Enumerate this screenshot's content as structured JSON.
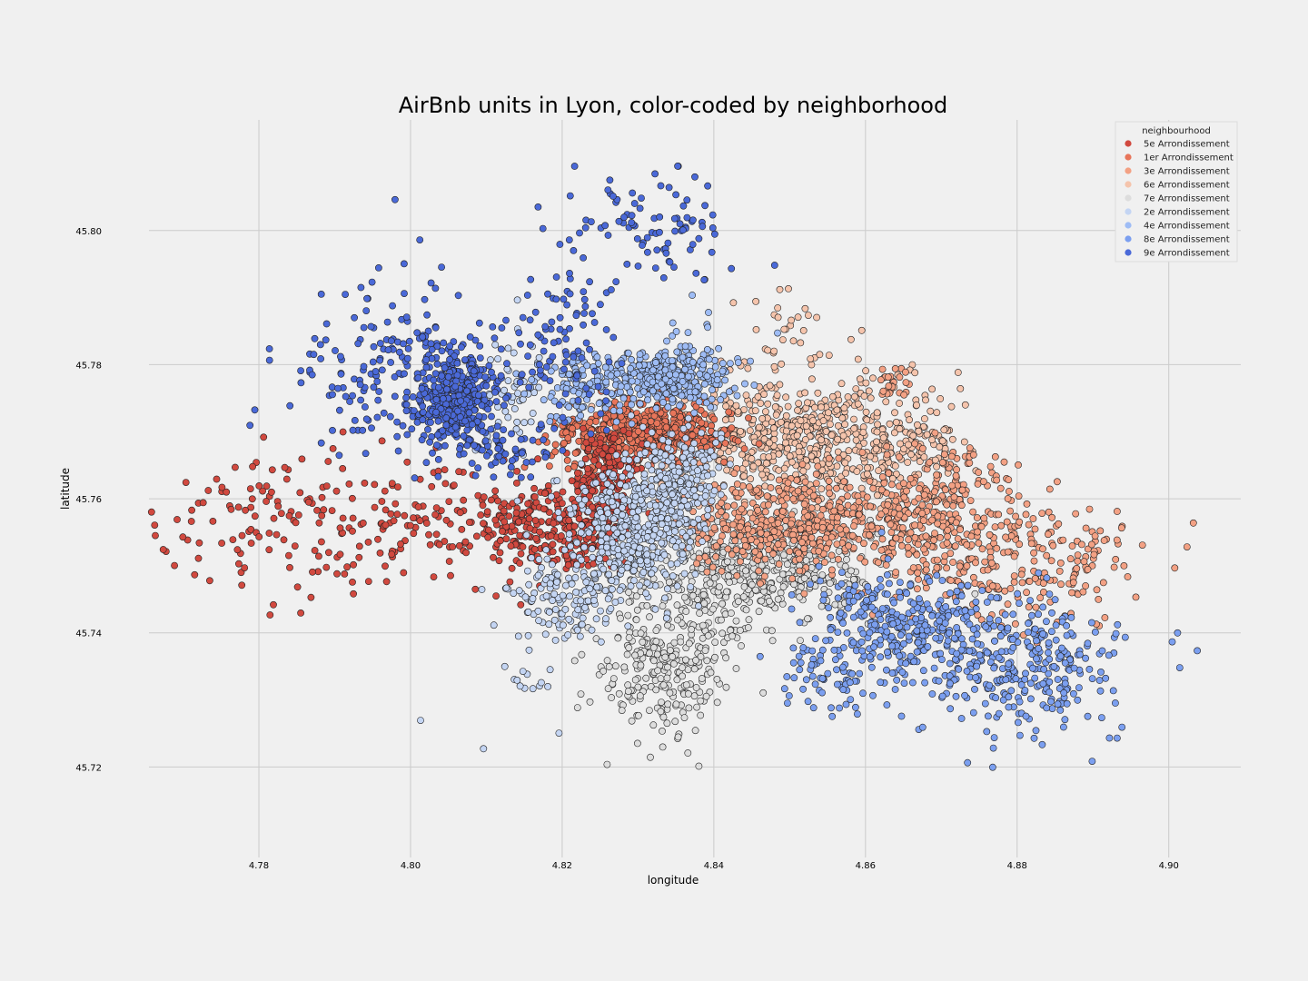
{
  "chart_data": {
    "type": "scatter",
    "title": "AirBnb units in Lyon, color-coded by neighborhood",
    "xlabel": "longitude",
    "ylabel": "latitude",
    "xlim": [
      4.7655,
      4.9095
    ],
    "ylim": [
      45.7065,
      45.8165
    ],
    "xticks": [
      "4.78",
      "4.80",
      "4.82",
      "4.84",
      "4.86",
      "4.88",
      "4.90"
    ],
    "yticks": [
      "45.72",
      "45.74",
      "45.76",
      "45.78",
      "45.80"
    ],
    "grid": true,
    "legend": {
      "title": "neighbourhood",
      "placement": "top-right",
      "entries": [
        "5e Arrondissement",
        "1er Arrondissement",
        "3e Arrondissement",
        "6e Arrondissement",
        "7e Arrondissement",
        "2e Arrondissement",
        "4e Arrondissement",
        "8e Arrondissement",
        "9e Arrondissement"
      ]
    },
    "series": [
      {
        "name": "5e Arrondissement",
        "color": "#d1493f",
        "clusters": [
          {
            "center": [
              4.785,
              45.756
            ],
            "spread": [
              0.011,
              0.006
            ],
            "count": 160
          },
          {
            "center": [
              4.806,
              45.756
            ],
            "spread": [
              0.008,
              0.004
            ],
            "count": 110
          },
          {
            "center": [
              4.8155,
              45.756
            ],
            "spread": [
              0.0035,
              0.0028
            ],
            "count": 120
          },
          {
            "center": [
              4.8255,
              45.761
            ],
            "spread": [
              0.0022,
              0.0045
            ],
            "count": 260
          },
          {
            "center": [
              4.8215,
              45.754
            ],
            "spread": [
              0.0022,
              0.0025
            ],
            "count": 70
          }
        ]
      },
      {
        "name": "1er Arrondissement",
        "color": "#e8755a",
        "clusters": [
          {
            "center": [
              4.832,
              45.77
            ],
            "spread": [
              0.0045,
              0.0022
            ],
            "count": 480
          },
          {
            "center": [
              4.8225,
              45.768
            ],
            "spread": [
              0.0022,
              0.0025
            ],
            "count": 60
          }
        ]
      },
      {
        "name": "3e Arrondissement",
        "color": "#f3a184",
        "clusters": [
          {
            "center": [
              4.85,
              45.756
            ],
            "spread": [
              0.0065,
              0.0035
            ],
            "count": 420
          },
          {
            "center": [
              4.868,
              45.757
            ],
            "spread": [
              0.0055,
              0.0055
            ],
            "count": 330
          },
          {
            "center": [
              4.882,
              45.751
            ],
            "spread": [
              0.0075,
              0.0045
            ],
            "count": 210
          },
          {
            "center": [
              4.8635,
              45.777
            ],
            "spread": [
              0.001,
              0.0012
            ],
            "count": 25
          }
        ]
      },
      {
        "name": "6e Arrondissement",
        "color": "#f5c4ac",
        "clusters": [
          {
            "center": [
              4.851,
              45.769
            ],
            "spread": [
              0.0075,
              0.0048
            ],
            "count": 520
          },
          {
            "center": [
              4.865,
              45.768
            ],
            "spread": [
              0.0045,
              0.0038
            ],
            "count": 120
          },
          {
            "center": [
              4.85,
              45.786
            ],
            "spread": [
              0.0045,
              0.0028
            ],
            "count": 25
          }
        ]
      },
      {
        "name": "7e Arrondissement",
        "color": "#dddddd",
        "clusters": [
          {
            "center": [
              4.844,
              45.749
            ],
            "spread": [
              0.0075,
              0.0038
            ],
            "count": 520
          },
          {
            "center": [
              4.8335,
              45.735
            ],
            "spread": [
              0.0045,
              0.0048
            ],
            "count": 260
          }
        ]
      },
      {
        "name": "2e Arrondissement",
        "color": "#c4d5f3",
        "clusters": [
          {
            "center": [
              4.829,
              45.755
            ],
            "spread": [
              0.0042,
              0.0048
            ],
            "count": 420
          },
          {
            "center": [
              4.8355,
              45.763
            ],
            "spread": [
              0.0028,
              0.0038
            ],
            "count": 210
          },
          {
            "center": [
              4.82,
              45.745
            ],
            "spread": [
              0.0035,
              0.0028
            ],
            "count": 140
          },
          {
            "center": [
              4.813,
              45.776
            ],
            "spread": [
              0.0028,
              0.0048
            ],
            "count": 60
          },
          {
            "center": [
              4.814,
              45.73
            ],
            "spread": [
              0.0038,
              0.0048
            ],
            "count": 16
          }
        ]
      },
      {
        "name": "4e Arrondissement",
        "color": "#9ebcf5",
        "clusters": [
          {
            "center": [
              4.834,
              45.778
            ],
            "spread": [
              0.0042,
              0.0022
            ],
            "count": 330
          },
          {
            "center": [
              4.823,
              45.777
            ],
            "spread": [
              0.0035,
              0.0028
            ],
            "count": 110
          },
          {
            "center": [
              4.836,
              45.786
            ],
            "spread": [
              0.0028,
              0.0032
            ],
            "count": 12
          }
        ]
      },
      {
        "name": "8e Arrondissement",
        "color": "#7b9ff0",
        "clusters": [
          {
            "center": [
              4.865,
              45.741
            ],
            "spread": [
              0.0055,
              0.0042
            ],
            "count": 320
          },
          {
            "center": [
              4.881,
              45.735
            ],
            "spread": [
              0.0065,
              0.0055
            ],
            "count": 300
          },
          {
            "center": [
              4.855,
              45.734
            ],
            "spread": [
              0.0035,
              0.0035
            ],
            "count": 70
          }
        ]
      },
      {
        "name": "9e Arrondissement",
        "color": "#4a69d8",
        "clusters": [
          {
            "center": [
              4.806,
              45.775
            ],
            "spread": [
              0.0025,
              0.0032
            ],
            "count": 360
          },
          {
            "center": [
              4.797,
              45.779
            ],
            "spread": [
              0.0065,
              0.0068
            ],
            "count": 190
          },
          {
            "center": [
              4.82,
              45.783
            ],
            "spread": [
              0.0038,
              0.0055
            ],
            "count": 100
          },
          {
            "center": [
              4.8325,
              45.801
            ],
            "spread": [
              0.0055,
              0.0042
            ],
            "count": 90
          },
          {
            "center": [
              4.812,
              45.767
            ],
            "spread": [
              0.0038,
              0.0022
            ],
            "count": 70
          }
        ]
      }
    ]
  }
}
